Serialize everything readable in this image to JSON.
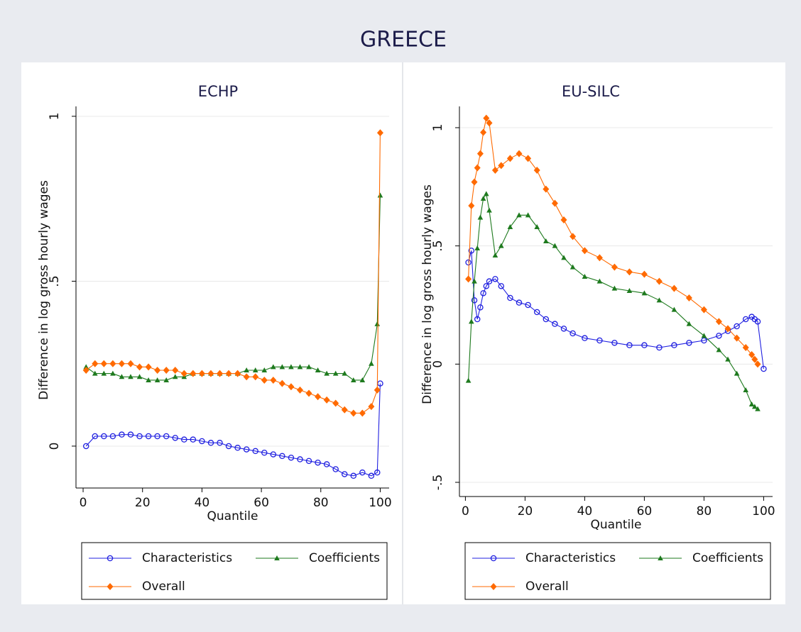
{
  "title": "GREECE",
  "chart_data": [
    {
      "type": "line",
      "title": "ECHP",
      "xlabel": "Quantile",
      "ylabel": "Difference in log gross hourly wages",
      "x": [
        1,
        4,
        7,
        10,
        13,
        16,
        19,
        22,
        25,
        28,
        31,
        34,
        37,
        40,
        43,
        46,
        49,
        52,
        55,
        58,
        61,
        64,
        67,
        70,
        73,
        76,
        79,
        82,
        85,
        88,
        91,
        94,
        97,
        99,
        100
      ],
      "series": [
        {
          "name": "Characteristics",
          "color": "#2020e0",
          "marker": "circle",
          "values": [
            0.0,
            0.03,
            0.03,
            0.03,
            0.035,
            0.035,
            0.03,
            0.03,
            0.03,
            0.03,
            0.025,
            0.02,
            0.02,
            0.015,
            0.01,
            0.01,
            0.0,
            -0.005,
            -0.01,
            -0.015,
            -0.02,
            -0.025,
            -0.03,
            -0.035,
            -0.04,
            -0.045,
            -0.05,
            -0.055,
            -0.07,
            -0.085,
            -0.09,
            -0.08,
            -0.09,
            -0.08,
            0.19
          ]
        },
        {
          "name": "Coefficients",
          "color": "#1e7a1e",
          "marker": "triangle",
          "values": [
            0.24,
            0.22,
            0.22,
            0.22,
            0.21,
            0.21,
            0.21,
            0.2,
            0.2,
            0.2,
            0.21,
            0.21,
            0.22,
            0.22,
            0.22,
            0.22,
            0.22,
            0.22,
            0.23,
            0.23,
            0.23,
            0.24,
            0.24,
            0.24,
            0.24,
            0.24,
            0.23,
            0.22,
            0.22,
            0.22,
            0.2,
            0.2,
            0.25,
            0.37,
            0.76
          ]
        },
        {
          "name": "Overall",
          "color": "#ff6a00",
          "marker": "diamond",
          "values": [
            0.23,
            0.25,
            0.25,
            0.25,
            0.25,
            0.25,
            0.24,
            0.24,
            0.23,
            0.23,
            0.23,
            0.22,
            0.22,
            0.22,
            0.22,
            0.22,
            0.22,
            0.22,
            0.21,
            0.21,
            0.2,
            0.2,
            0.19,
            0.18,
            0.17,
            0.16,
            0.15,
            0.14,
            0.13,
            0.11,
            0.1,
            0.1,
            0.12,
            0.17,
            0.95
          ]
        }
      ],
      "xlim": [
        -2.4,
        103
      ],
      "ylim": [
        -0.127,
        1.03
      ],
      "xticks": [
        0,
        20,
        40,
        60,
        80,
        100
      ],
      "yticks": [
        0,
        {
          "value": 0.5,
          "label": ".5"
        },
        1
      ],
      "grid": true,
      "legend": "bottom"
    },
    {
      "type": "line",
      "title": "EU-SILC",
      "xlabel": "Quantile",
      "ylabel": "Difference in log gross hourly wages",
      "x": [
        1,
        2,
        3,
        4,
        5,
        6,
        7,
        8,
        10,
        12,
        15,
        18,
        21,
        24,
        27,
        30,
        33,
        36,
        40,
        45,
        50,
        55,
        60,
        65,
        70,
        75,
        80,
        85,
        88,
        91,
        94,
        96,
        97,
        98,
        100
      ],
      "series": [
        {
          "name": "Characteristics",
          "color": "#2020e0",
          "marker": "circle",
          "values": [
            0.43,
            0.48,
            0.27,
            0.19,
            0.24,
            0.3,
            0.33,
            0.35,
            0.36,
            0.33,
            0.28,
            0.26,
            0.25,
            0.22,
            0.19,
            0.17,
            0.15,
            0.13,
            0.11,
            0.1,
            0.09,
            0.08,
            0.08,
            0.07,
            0.08,
            0.09,
            0.1,
            0.12,
            0.14,
            0.16,
            0.19,
            0.2,
            0.19,
            0.18,
            -0.02
          ]
        },
        {
          "name": "Coefficients",
          "color": "#1e7a1e",
          "marker": "triangle",
          "values": [
            -0.07,
            0.18,
            0.35,
            0.49,
            0.62,
            0.7,
            0.72,
            0.65,
            0.46,
            0.5,
            0.58,
            0.63,
            0.63,
            0.58,
            0.52,
            0.5,
            0.45,
            0.41,
            0.37,
            0.35,
            0.32,
            0.31,
            0.3,
            0.27,
            0.23,
            0.17,
            0.12,
            0.06,
            0.02,
            -0.04,
            -0.11,
            -0.17,
            -0.18,
            -0.19,
            null
          ]
        },
        {
          "name": "Overall",
          "color": "#ff6a00",
          "marker": "diamond",
          "values": [
            0.36,
            0.67,
            0.77,
            0.83,
            0.89,
            0.98,
            1.04,
            1.02,
            0.82,
            0.84,
            0.87,
            0.89,
            0.87,
            0.82,
            0.74,
            0.68,
            0.61,
            0.54,
            0.48,
            0.45,
            0.41,
            0.39,
            0.38,
            0.35,
            0.32,
            0.28,
            0.23,
            0.18,
            0.15,
            0.11,
            0.07,
            0.04,
            0.02,
            0.0,
            null
          ]
        }
      ],
      "xlim": [
        -2,
        103
      ],
      "ylim": [
        -0.56,
        1.09
      ],
      "xticks": [
        0,
        20,
        40,
        60,
        80,
        100
      ],
      "yticks": [
        {
          "value": -0.5,
          "label": "-.5"
        },
        0,
        {
          "value": 0.5,
          "label": ".5"
        },
        1
      ],
      "grid": true,
      "legend": "bottom"
    }
  ]
}
